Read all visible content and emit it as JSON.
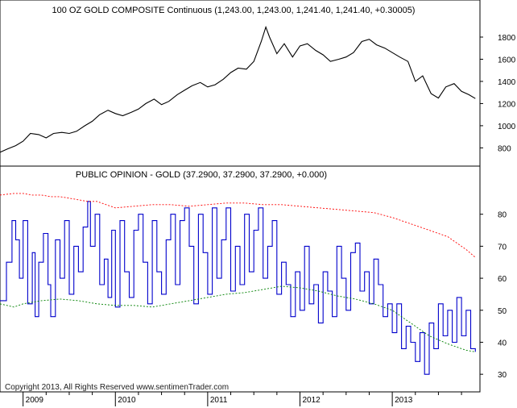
{
  "chart_data": [
    {
      "type": "line",
      "title": "100 OZ GOLD COMPOSITE Continuous (1,243.00, 1,243.00, 1,241.40, 1,241.40, +0.30005)",
      "xlabel": "",
      "ylabel": "",
      "ylim": [
        650,
        1960
      ],
      "y_ticks": [
        "800",
        "1000",
        "1200",
        "1400",
        "1600",
        "1800"
      ],
      "y_tick_values": [
        800,
        1000,
        1200,
        1400,
        1600,
        1800
      ],
      "grid": false,
      "series": [
        {
          "color": "#000000",
          "x": [
            2008.75,
            2008.83,
            2008.92,
            2009.0,
            2009.08,
            2009.17,
            2009.25,
            2009.33,
            2009.42,
            2009.5,
            2009.58,
            2009.67,
            2009.75,
            2009.83,
            2009.92,
            2010.0,
            2010.08,
            2010.17,
            2010.25,
            2010.33,
            2010.42,
            2010.5,
            2010.58,
            2010.67,
            2010.75,
            2010.83,
            2010.92,
            2011.0,
            2011.08,
            2011.17,
            2011.25,
            2011.33,
            2011.42,
            2011.5,
            2011.58,
            2011.63,
            2011.67,
            2011.75,
            2011.83,
            2011.92,
            2012.0,
            2012.08,
            2012.17,
            2012.25,
            2012.33,
            2012.42,
            2012.5,
            2012.58,
            2012.67,
            2012.75,
            2012.83,
            2012.92,
            2013.0,
            2013.08,
            2013.17,
            2013.25,
            2013.33,
            2013.42,
            2013.5,
            2013.58,
            2013.67,
            2013.75,
            2013.83,
            2013.9
          ],
          "values": [
            760,
            790,
            820,
            860,
            930,
            920,
            890,
            930,
            940,
            930,
            950,
            1000,
            1040,
            1100,
            1140,
            1110,
            1090,
            1120,
            1150,
            1200,
            1240,
            1190,
            1220,
            1280,
            1320,
            1360,
            1390,
            1350,
            1370,
            1420,
            1480,
            1520,
            1510,
            1580,
            1760,
            1890,
            1800,
            1650,
            1740,
            1620,
            1720,
            1740,
            1680,
            1640,
            1580,
            1600,
            1620,
            1660,
            1760,
            1780,
            1730,
            1700,
            1660,
            1620,
            1580,
            1400,
            1450,
            1290,
            1250,
            1350,
            1380,
            1310,
            1280,
            1245
          ]
        }
      ]
    },
    {
      "type": "line",
      "title": "PUBLIC OPINION - GOLD (37.2900, 37.2900, 37.2900, +0.000)",
      "xlabel": "",
      "ylabel": "",
      "ylim": [
        25,
        90
      ],
      "y_ticks": [
        "30",
        "40",
        "50",
        "60",
        "70",
        "80"
      ],
      "y_tick_values": [
        30,
        40,
        50,
        60,
        70,
        80
      ],
      "grid": false,
      "series": [
        {
          "color": "#0000cc",
          "x": [
            2008.75,
            2008.82,
            2008.88,
            2008.92,
            2008.96,
            2009.0,
            2009.05,
            2009.1,
            2009.13,
            2009.17,
            2009.22,
            2009.27,
            2009.3,
            2009.35,
            2009.4,
            2009.45,
            2009.5,
            2009.55,
            2009.6,
            2009.65,
            2009.7,
            2009.73,
            2009.78,
            2009.83,
            2009.88,
            2009.92,
            2009.96,
            2010.0,
            2010.05,
            2010.1,
            2010.15,
            2010.2,
            2010.25,
            2010.3,
            2010.35,
            2010.4,
            2010.45,
            2010.5,
            2010.55,
            2010.6,
            2010.65,
            2010.7,
            2010.75,
            2010.8,
            2010.85,
            2010.9,
            2010.95,
            2011.0,
            2011.05,
            2011.1,
            2011.15,
            2011.2,
            2011.25,
            2011.3,
            2011.35,
            2011.4,
            2011.45,
            2011.5,
            2011.55,
            2011.6,
            2011.65,
            2011.7,
            2011.75,
            2011.8,
            2011.85,
            2011.9,
            2011.95,
            2012.0,
            2012.05,
            2012.1,
            2012.15,
            2012.2,
            2012.25,
            2012.3,
            2012.35,
            2012.4,
            2012.45,
            2012.5,
            2012.55,
            2012.6,
            2012.65,
            2012.7,
            2012.75,
            2012.8,
            2012.85,
            2012.9,
            2012.95,
            2013.0,
            2013.05,
            2013.1,
            2013.15,
            2013.2,
            2013.25,
            2013.3,
            2013.35,
            2013.4,
            2013.45,
            2013.5,
            2013.55,
            2013.6,
            2013.65,
            2013.7,
            2013.75,
            2013.8,
            2013.85,
            2013.9
          ],
          "values": [
            53,
            65,
            78,
            72,
            60,
            78,
            52,
            68,
            48,
            65,
            74,
            58,
            48,
            72,
            60,
            78,
            55,
            70,
            62,
            76,
            84,
            70,
            80,
            58,
            66,
            54,
            75,
            51,
            78,
            62,
            54,
            75,
            80,
            65,
            52,
            78,
            62,
            55,
            72,
            80,
            58,
            78,
            82,
            70,
            52,
            80,
            68,
            55,
            82,
            60,
            72,
            82,
            56,
            70,
            58,
            80,
            62,
            75,
            82,
            60,
            70,
            78,
            55,
            65,
            58,
            48,
            62,
            50,
            70,
            52,
            58,
            46,
            62,
            56,
            48,
            70,
            60,
            50,
            68,
            71,
            56,
            62,
            52,
            66,
            58,
            48,
            52,
            43,
            52,
            38,
            45,
            40,
            34,
            43,
            30,
            46,
            38,
            52,
            42,
            50,
            40,
            54,
            42,
            50,
            38,
            37
          ]
        },
        {
          "color": "#ff0000",
          "x": [
            2008.75,
            2008.9,
            2009.0,
            2009.1,
            2009.2,
            2009.3,
            2009.4,
            2009.5,
            2009.6,
            2009.7,
            2009.8,
            2009.9,
            2010.0,
            2010.2,
            2010.4,
            2010.6,
            2010.8,
            2011.0,
            2011.2,
            2011.4,
            2011.6,
            2011.8,
            2012.0,
            2012.2,
            2012.4,
            2012.6,
            2012.8,
            2013.0,
            2013.2,
            2013.4,
            2013.6,
            2013.8,
            2013.9
          ],
          "values": [
            86,
            86.5,
            86.5,
            86,
            86,
            85.5,
            85.5,
            85,
            84.5,
            84,
            84,
            83,
            82,
            82.5,
            83,
            83,
            82.5,
            83,
            83.5,
            83.5,
            83,
            83,
            82.5,
            82,
            81.5,
            81,
            80.5,
            79,
            77,
            75,
            73,
            69,
            66.5
          ]
        },
        {
          "color": "#008000",
          "x": [
            2008.75,
            2008.9,
            2009.0,
            2009.2,
            2009.4,
            2009.6,
            2009.8,
            2010.0,
            2010.2,
            2010.4,
            2010.6,
            2010.8,
            2011.0,
            2011.2,
            2011.4,
            2011.6,
            2011.8,
            2012.0,
            2012.2,
            2012.4,
            2012.6,
            2012.8,
            2013.0,
            2013.2,
            2013.4,
            2013.6,
            2013.8,
            2013.9
          ],
          "values": [
            52,
            51,
            52,
            53,
            53.5,
            53,
            52,
            51.5,
            51.5,
            51,
            52,
            53,
            54,
            55,
            55.5,
            56.5,
            57.5,
            57,
            56,
            54.5,
            53.5,
            52,
            50,
            46,
            42,
            39.5,
            37.5,
            37
          ]
        }
      ]
    }
  ],
  "x_axis": {
    "range": [
      2008.75,
      2013.95
    ],
    "year_labels": [
      "2009",
      "2010",
      "2011",
      "2012",
      "2013"
    ],
    "year_values": [
      2009,
      2010,
      2011,
      2012,
      2013
    ]
  },
  "copyright": "Copyright 2013, All Rights Reserved  www.sentimenTrader.com"
}
